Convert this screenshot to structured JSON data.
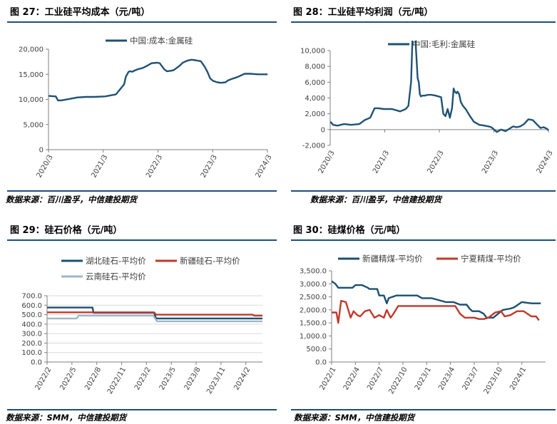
{
  "panels": [
    {
      "title": "图 27：工业硅平均成本（元/吨）",
      "source": "数据来源：百川盈孚，中信建投期货"
    },
    {
      "title": "图 28：工业硅平均利润（元/吨）",
      "source": "数据来源：百川盈孚，中信建投期货"
    },
    {
      "title": "图 29：硅石价格（元/吨）",
      "source": "数据来源：SMM，中信建投期货"
    },
    {
      "title": "图 30：硅煤价格（元/吨）",
      "source": "数据来源：SMM，中信建投期货"
    }
  ],
  "chart_data": [
    {
      "type": "line",
      "title": "",
      "xlabel": "",
      "ylabel": "",
      "ylim": [
        0,
        20000
      ],
      "yticks": [
        0,
        5000,
        10000,
        15000,
        20000
      ],
      "ytick_labels": [
        "0",
        "5,000",
        "10,000",
        "15,000",
        "20,000"
      ],
      "xlim": [
        2020.167,
        2024.167
      ],
      "xticks": [
        2020.167,
        2021.167,
        2022.167,
        2023.167,
        2024.167
      ],
      "xtick_labels": [
        "2020/3",
        "2021/3",
        "2022/3",
        "2023/3",
        "2024/3"
      ],
      "legend": "top",
      "series": [
        {
          "name": "中国:成本:金属硅",
          "color": "#1f5275",
          "x": [
            2020.17,
            2020.3,
            2020.34,
            2020.4,
            2020.55,
            2020.7,
            2020.85,
            2021.0,
            2021.2,
            2021.4,
            2021.55,
            2021.58,
            2021.63,
            2021.66,
            2021.7,
            2021.73,
            2021.8,
            2021.9,
            2022.0,
            2022.05,
            2022.15,
            2022.2,
            2022.28,
            2022.33,
            2022.4,
            2022.45,
            2022.5,
            2022.55,
            2022.62,
            2022.7,
            2022.78,
            2022.85,
            2022.95,
            2023.02,
            2023.07,
            2023.12,
            2023.17,
            2023.25,
            2023.32,
            2023.4,
            2023.45,
            2023.52,
            2023.58,
            2023.65,
            2023.75,
            2023.85,
            2024.0,
            2024.1,
            2024.17
          ],
          "y": [
            10700,
            10600,
            9800,
            9800,
            10100,
            10400,
            10500,
            10500,
            10600,
            11000,
            13000,
            14500,
            15500,
            15600,
            15500,
            15700,
            16000,
            16300,
            16900,
            17200,
            17300,
            17200,
            16000,
            15600,
            15700,
            15800,
            16200,
            16600,
            17300,
            17700,
            17900,
            17800,
            17600,
            16500,
            15500,
            14200,
            13700,
            13400,
            13300,
            13400,
            13800,
            14100,
            14300,
            14600,
            15100,
            15100,
            15000,
            15000,
            15000
          ]
        }
      ]
    },
    {
      "type": "line",
      "title": "",
      "xlabel": "",
      "ylabel": "",
      "ylim": [
        -2000,
        10000
      ],
      "yticks": [
        -2000,
        0,
        2000,
        4000,
        6000,
        8000,
        10000
      ],
      "ytick_labels": [
        "-2,000",
        "0",
        "2,000",
        "4,000",
        "6,000",
        "8,000",
        "10,000"
      ],
      "xlim": [
        2020.167,
        2024.167
      ],
      "xticks": [
        2020.167,
        2021.167,
        2022.167,
        2023.167,
        2024.167
      ],
      "xtick_labels": [
        "2020/3",
        "2021/3",
        "2022/3",
        "2023/3",
        "2024/3"
      ],
      "legend": "top",
      "series": [
        {
          "name": "中国:毛利:金属硅",
          "color": "#1f5275",
          "x": [
            2020.17,
            2020.22,
            2020.3,
            2020.42,
            2020.55,
            2020.7,
            2020.8,
            2020.9,
            2020.98,
            2021.05,
            2021.15,
            2021.3,
            2021.45,
            2021.55,
            2021.6,
            2021.65,
            2021.68,
            2021.72,
            2021.77,
            2021.79,
            2021.81,
            2021.83,
            2021.86,
            2021.9,
            2021.95,
            2022.02,
            2022.1,
            2022.15,
            2022.2,
            2022.24,
            2022.28,
            2022.32,
            2022.36,
            2022.4,
            2022.43,
            2022.45,
            2022.48,
            2022.5,
            2022.53,
            2022.56,
            2022.6,
            2022.65,
            2022.72,
            2022.8,
            2022.9,
            2023.0,
            2023.07,
            2023.12,
            2023.17,
            2023.22,
            2023.3,
            2023.38,
            2023.45,
            2023.52,
            2023.58,
            2023.65,
            2023.72,
            2023.8,
            2023.88,
            2023.95,
            2024.02,
            2024.08,
            2024.14,
            2024.17
          ],
          "y": [
            1000,
            600,
            500,
            700,
            600,
            700,
            1200,
            1500,
            2700,
            2700,
            2600,
            2600,
            2300,
            2600,
            3000,
            6000,
            12500,
            12500,
            6500,
            6000,
            4500,
            4200,
            4300,
            4300,
            4400,
            4400,
            4300,
            4200,
            4100,
            2000,
            1700,
            2600,
            1500,
            2700,
            5200,
            4800,
            4600,
            4800,
            4500,
            3500,
            3000,
            2600,
            1800,
            1000,
            600,
            500,
            400,
            300,
            0,
            -300,
            0,
            -200,
            100,
            400,
            300,
            400,
            700,
            1300,
            1200,
            700,
            200,
            300,
            100,
            -100
          ]
        }
      ]
    },
    {
      "type": "line",
      "title": "",
      "xlabel": "",
      "ylabel": "",
      "ylim": [
        0,
        700
      ],
      "yticks": [
        0,
        100,
        200,
        300,
        400,
        500,
        600,
        700
      ],
      "ytick_labels": [
        "0.0",
        "100.0",
        "200.0",
        "300.0",
        "400.0",
        "500.0",
        "600.0",
        "700.0"
      ],
      "xlim": [
        2022.083,
        2024.25
      ],
      "xticks": [
        2022.083,
        2022.333,
        2022.583,
        2022.833,
        2023.083,
        2023.333,
        2023.583,
        2023.833,
        2024.083
      ],
      "xtick_labels": [
        "2022/2",
        "2022/5",
        "2022/8",
        "2022/11",
        "2023/2",
        "2023/5",
        "2023/8",
        "2023/11",
        "2024/2"
      ],
      "legend": "top",
      "series": [
        {
          "name": "湖北硅石-平均价",
          "color": "#1b4f72",
          "x": [
            2022.083,
            2022.54,
            2022.55,
            2023.16,
            2023.18,
            2024.25
          ],
          "y": [
            575,
            575,
            520,
            520,
            460,
            460
          ]
        },
        {
          "name": "新疆硅石-平均价",
          "color": "#c0392b",
          "x": [
            2022.083,
            2023.16,
            2023.18,
            2024.15,
            2024.17,
            2024.25
          ],
          "y": [
            525,
            525,
            500,
            500,
            490,
            490
          ]
        },
        {
          "name": "云南硅石-平均价",
          "color": "#9fb6c9",
          "x": [
            2022.083,
            2022.38,
            2022.4,
            2023.15,
            2023.19,
            2024.25
          ],
          "y": [
            460,
            460,
            490,
            490,
            430,
            430
          ]
        }
      ]
    },
    {
      "type": "line",
      "title": "",
      "xlabel": "",
      "ylabel": "",
      "ylim": [
        0,
        3500
      ],
      "yticks": [
        0,
        500,
        1000,
        1500,
        2000,
        2500,
        3000,
        3500
      ],
      "ytick_labels": [
        "0.0",
        "500.0",
        "1,000.0",
        "1,500.0",
        "2,000.0",
        "2,500.0",
        "3,000.0",
        "3,500.0"
      ],
      "xlim": [
        2022.0,
        2024.25
      ],
      "xticks": [
        2022.0,
        2022.25,
        2022.5,
        2022.75,
        2023.0,
        2023.25,
        2023.5,
        2023.75,
        2024.0
      ],
      "xtick_labels": [
        "2022/1",
        "2022/4",
        "2022/7",
        "2022/10",
        "2023/1",
        "2023/4",
        "2023/7",
        "2023/10",
        "2024/1"
      ],
      "legend": "top",
      "series": [
        {
          "name": "新疆精煤-平均价",
          "color": "#1b4f72",
          "x": [
            2022.0,
            2022.04,
            2022.07,
            2022.22,
            2022.25,
            2022.32,
            2022.38,
            2022.4,
            2022.48,
            2022.5,
            2022.55,
            2022.58,
            2022.6,
            2022.68,
            2022.9,
            2022.95,
            2023.05,
            2023.2,
            2023.28,
            2023.35,
            2023.42,
            2023.45,
            2023.48,
            2023.55,
            2023.6,
            2023.63,
            2023.7,
            2023.75,
            2023.8,
            2023.88,
            2023.92,
            2024.0,
            2024.1,
            2024.2
          ],
          "y": [
            3100,
            3000,
            2850,
            2850,
            2950,
            2950,
            2850,
            2800,
            2800,
            2550,
            2550,
            2250,
            2450,
            2550,
            2550,
            2450,
            2450,
            2300,
            2300,
            2200,
            2200,
            2050,
            1950,
            1950,
            1850,
            1700,
            1700,
            1850,
            2000,
            2050,
            2100,
            2300,
            2250,
            2250
          ]
        },
        {
          "name": "宁夏精煤-平均价",
          "color": "#c0392b",
          "x": [
            2022.0,
            2022.05,
            2022.07,
            2022.1,
            2022.15,
            2022.2,
            2022.23,
            2022.27,
            2022.3,
            2022.35,
            2022.4,
            2022.45,
            2022.5,
            2022.55,
            2022.58,
            2022.62,
            2022.65,
            2022.7,
            2022.8,
            2022.95,
            2023.05,
            2023.15,
            2023.3,
            2023.35,
            2023.4,
            2023.5,
            2023.55,
            2023.6,
            2023.65,
            2023.72,
            2023.78,
            2023.82,
            2023.88,
            2023.95,
            2024.02,
            2024.1,
            2024.15,
            2024.18
          ],
          "y": [
            1900,
            1900,
            1500,
            2350,
            2300,
            1700,
            1950,
            1800,
            1750,
            1950,
            2000,
            1700,
            1800,
            1700,
            2000,
            1700,
            1850,
            2150,
            2150,
            2150,
            2150,
            2150,
            2150,
            1850,
            1700,
            1700,
            1650,
            1650,
            1700,
            1900,
            1950,
            1750,
            1800,
            1950,
            1950,
            1750,
            1750,
            1600
          ]
        }
      ]
    }
  ]
}
